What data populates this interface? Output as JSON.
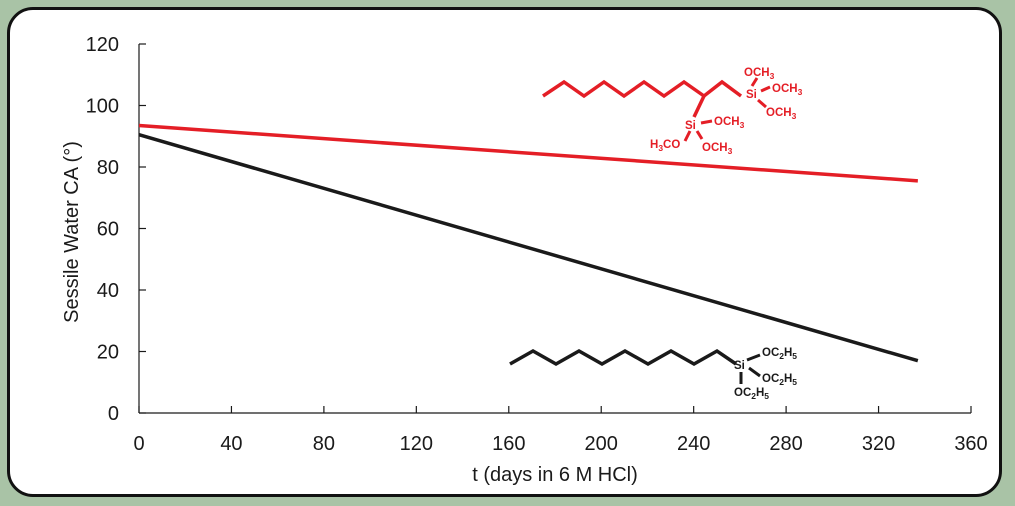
{
  "chart_data": {
    "type": "line",
    "xlabel": "t (days in 6 M HCl)",
    "ylabel": "Sessile Water CA (°)",
    "xlim": [
      0,
      360
    ],
    "ylim": [
      0,
      120
    ],
    "x_ticks": [
      0,
      40,
      80,
      120,
      160,
      200,
      240,
      280,
      320,
      360
    ],
    "y_ticks": [
      0,
      20,
      40,
      60,
      80,
      100,
      120
    ],
    "grid": false,
    "series": [
      {
        "x": [
          0,
          337
        ],
        "y": [
          93.5,
          75.5
        ],
        "color": "#e41e26"
      },
      {
        "x": [
          0,
          337
        ],
        "y": [
          90.5,
          17.0
        ],
        "color": "#1a1a1a"
      }
    ],
    "annotations": {
      "branched_silane": {
        "color": "#e41e26",
        "si_top": "Si",
        "si_top_groups": [
          "OCH",
          "OCH",
          "OCH"
        ],
        "si_bottom": "Si",
        "si_bottom_groups": [
          "OCH",
          "H",
          "CO",
          "OCH"
        ]
      },
      "linear_silane": {
        "color": "#1a1a1a",
        "si": "Si",
        "groups": [
          "OC",
          "H",
          "OC",
          "H",
          "OC",
          "H"
        ]
      }
    }
  }
}
